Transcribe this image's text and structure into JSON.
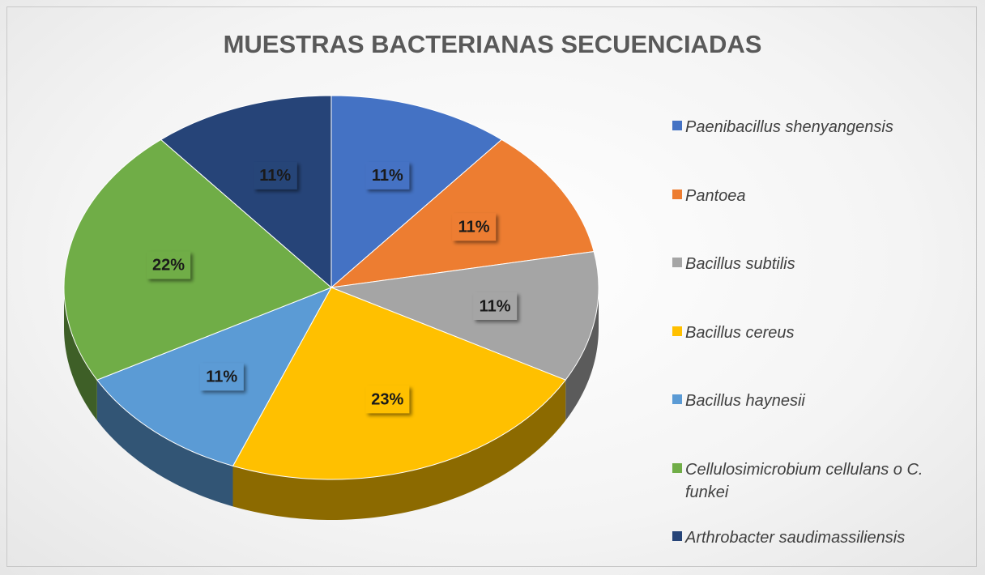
{
  "chart_data": {
    "type": "pie",
    "title": "MUESTRAS BACTERIANAS SECUENCIADAS",
    "categories": [
      "Paenibacillus shenyangensis",
      "Pantoea",
      "Bacillus subtilis",
      "Bacillus cereus",
      "Bacillus haynesii",
      "Cellulosimicrobium cellulans o C. funkei",
      "Arthrobacter saudimassiliensis"
    ],
    "values": [
      11,
      11,
      11,
      23,
      11,
      22,
      11
    ],
    "value_labels": [
      "11%",
      "11%",
      "11%",
      "23%",
      "11%",
      "22%",
      "11%"
    ],
    "colors": [
      "#4472c4",
      "#ed7d31",
      "#a5a5a5",
      "#ffc000",
      "#5b9bd5",
      "#70ad47",
      "#264478"
    ],
    "legend": "right"
  }
}
